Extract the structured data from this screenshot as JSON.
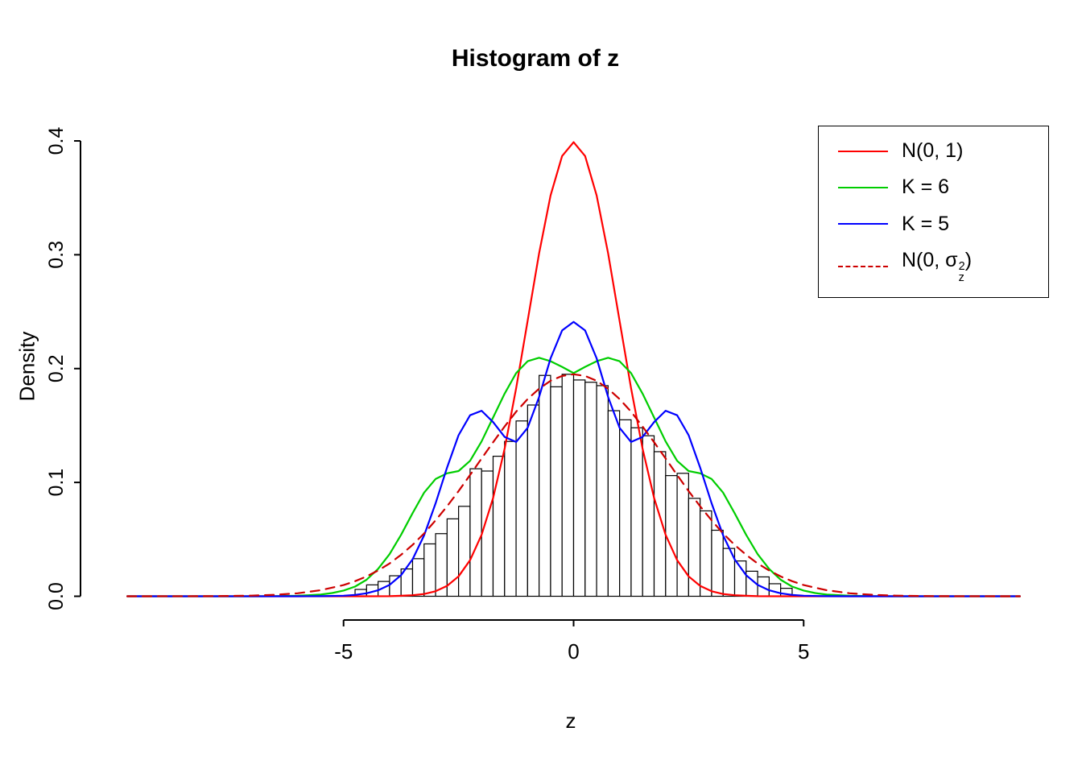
{
  "chart_data": {
    "type": "histogram",
    "title": "Histogram of z",
    "xlabel": "z",
    "ylabel": "Density",
    "x_ticks": [
      "-5",
      "0",
      "5"
    ],
    "x_tick_values": [
      -5,
      0,
      5
    ],
    "y_ticks": [
      "0.0",
      "0.1",
      "0.2",
      "0.3",
      "0.4"
    ],
    "y_tick_values": [
      0,
      0.1,
      0.2,
      0.3,
      0.4
    ],
    "xlim": [
      -9.8,
      9.7
    ],
    "ylim": [
      0,
      0.4
    ],
    "grid": false,
    "legend_position": "topright",
    "histogram": {
      "bin_start": -4.75,
      "bin_width": 0.25,
      "bar_fill": "#ffffff",
      "bar_stroke": "#000000",
      "densities": [
        0.006,
        0.01,
        0.013,
        0.018,
        0.024,
        0.033,
        0.046,
        0.055,
        0.068,
        0.079,
        0.112,
        0.11,
        0.123,
        0.136,
        0.154,
        0.168,
        0.194,
        0.184,
        0.195,
        0.19,
        0.188,
        0.185,
        0.163,
        0.155,
        0.148,
        0.141,
        0.127,
        0.106,
        0.108,
        0.086,
        0.075,
        0.058,
        0.042,
        0.031,
        0.022,
        0.017,
        0.011,
        0.007
      ]
    },
    "series": [
      {
        "id": "n01",
        "label": "N(0, 1)",
        "color": "#ff0000",
        "dash": "solid",
        "symmetric": true,
        "x": [
          0,
          0.25,
          0.5,
          0.75,
          1,
          1.25,
          1.5,
          1.75,
          2,
          2.25,
          2.5,
          2.75,
          3,
          3.25,
          3.5,
          3.75,
          4,
          4.5,
          5,
          6,
          8,
          9.7
        ],
        "y": [
          0.3989,
          0.3867,
          0.3521,
          0.3011,
          0.242,
          0.1826,
          0.1295,
          0.0863,
          0.054,
          0.0317,
          0.0175,
          0.0091,
          0.0044,
          0.002,
          0.0009,
          0.0004,
          0.0001,
          0,
          0,
          0,
          0,
          0
        ]
      },
      {
        "id": "k6",
        "label": "K = 6",
        "color": "#00cd00",
        "dash": "solid",
        "symmetric": true,
        "x": [
          0,
          0.25,
          0.5,
          0.75,
          1,
          1.25,
          1.5,
          1.75,
          2,
          2.25,
          2.5,
          2.75,
          3,
          3.25,
          3.5,
          3.75,
          4,
          4.25,
          4.5,
          4.75,
          5,
          5.25,
          5.5,
          6,
          6.5,
          7,
          8,
          9.7
        ],
        "y": [
          0.196,
          0.2015,
          0.2065,
          0.2095,
          0.2065,
          0.196,
          0.178,
          0.157,
          0.136,
          0.119,
          0.11,
          0.108,
          0.103,
          0.091,
          0.073,
          0.054,
          0.037,
          0.024,
          0.0145,
          0.0085,
          0.005,
          0.0028,
          0.0015,
          0.0004,
          0.0001,
          0,
          0,
          0
        ]
      },
      {
        "id": "k5",
        "label": "K = 5",
        "color": "#0000ff",
        "dash": "solid",
        "symmetric": true,
        "x": [
          0,
          0.25,
          0.5,
          0.75,
          1,
          1.25,
          1.5,
          1.75,
          2,
          2.25,
          2.5,
          2.75,
          3,
          3.25,
          3.5,
          3.75,
          4,
          4.25,
          4.5,
          4.75,
          5,
          5.5,
          6,
          9.7
        ],
        "y": [
          0.241,
          0.2335,
          0.209,
          0.175,
          0.148,
          0.1355,
          0.14,
          0.153,
          0.163,
          0.159,
          0.1415,
          0.113,
          0.0815,
          0.0535,
          0.0325,
          0.0185,
          0.01,
          0.0052,
          0.0026,
          0.0012,
          0.0005,
          0.0001,
          0,
          0
        ]
      },
      {
        "id": "n0sigmaz",
        "label": "N(0, σz²)",
        "label_parts": {
          "pre": "N(0, σ",
          "sup": "2",
          "sub": "z",
          "post": ")"
        },
        "color": "#cd0000",
        "dash": "dashed",
        "symmetric": true,
        "x": [
          0,
          0.25,
          0.5,
          0.75,
          1,
          1.25,
          1.5,
          1.75,
          2,
          2.25,
          2.5,
          2.75,
          3,
          3.25,
          3.5,
          3.75,
          4,
          4.25,
          4.5,
          4.75,
          5,
          5.5,
          6,
          6.5,
          7,
          7.5,
          8,
          9.7
        ],
        "y": [
          0.195,
          0.1935,
          0.1893,
          0.1823,
          0.1732,
          0.1621,
          0.1491,
          0.1353,
          0.121,
          0.1065,
          0.0924,
          0.079,
          0.0666,
          0.0552,
          0.0451,
          0.0364,
          0.0288,
          0.0226,
          0.0174,
          0.0132,
          0.0098,
          0.0053,
          0.0026,
          0.0013,
          0.0006,
          0.0003,
          0.0001,
          0
        ]
      }
    ]
  }
}
